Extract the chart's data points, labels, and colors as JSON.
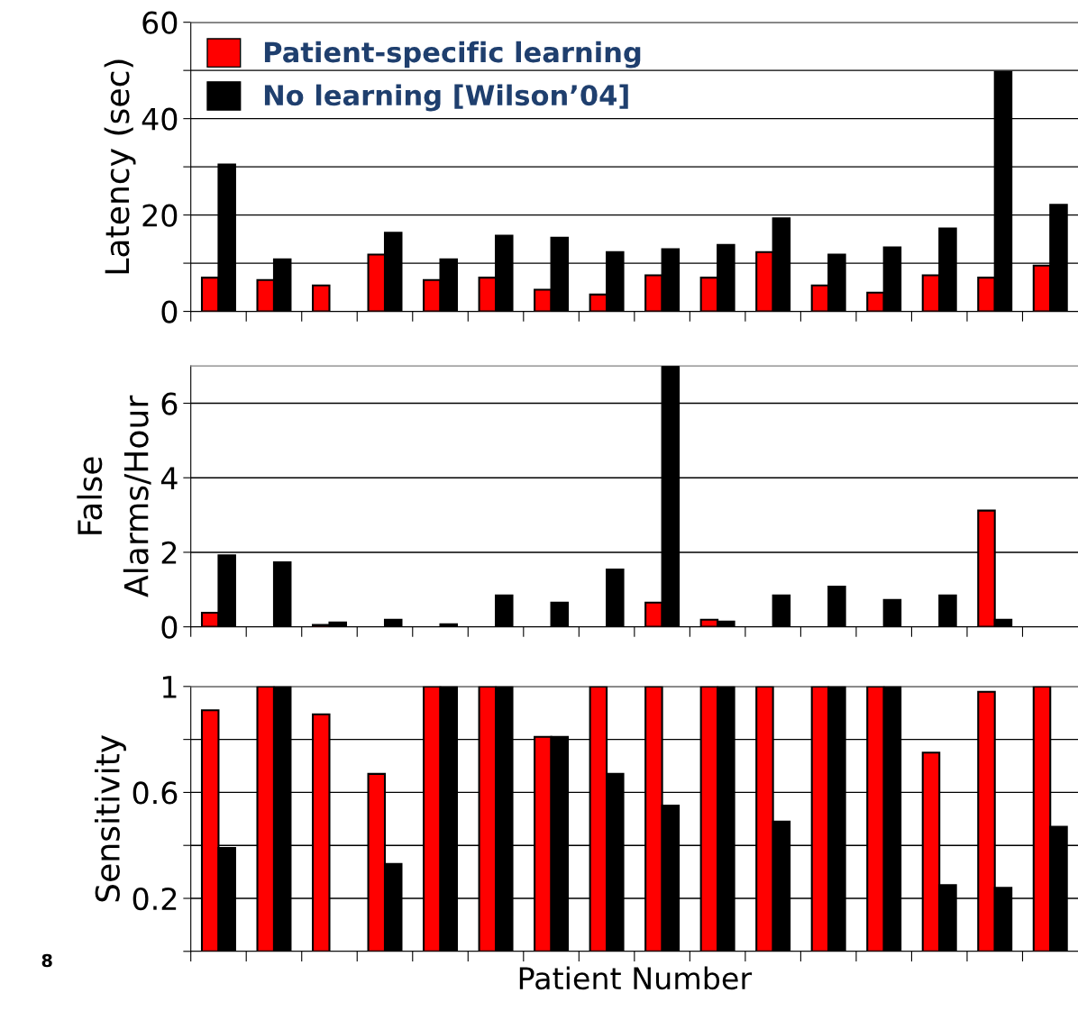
{
  "chart_data": [
    {
      "type": "bar",
      "ylabel": "Latency (sec)",
      "categories": [
        null,
        null,
        null,
        null,
        null,
        null,
        null,
        null,
        null,
        null,
        null,
        null,
        null,
        null,
        null,
        null
      ],
      "ylim": [
        0,
        60
      ],
      "yticks": [
        0,
        {
          "value": 10,
          "label": null
        },
        20,
        {
          "value": 30,
          "label": null
        },
        40,
        {
          "value": 50,
          "label": null
        },
        60
      ],
      "grid": "y",
      "legend": "top left",
      "tick_labels": "y",
      "series": [
        {
          "name": "Patient-specific learning",
          "color": "#ff0000",
          "values": [
            7,
            6.5,
            5.4,
            11.8,
            6.5,
            7,
            4.5,
            3.5,
            7.5,
            7,
            12.3,
            5.4,
            3.9,
            7.5,
            7,
            9.5
          ]
        },
        {
          "name": "No learning [Wilson’04]",
          "color": "#000000",
          "values": [
            30.5,
            10.8,
            null,
            16.3,
            10.8,
            15.7,
            15.3,
            12.3,
            12.9,
            13.8,
            19.3,
            11.8,
            13.3,
            17.2,
            49.7,
            22.1
          ]
        }
      ]
    },
    {
      "type": "bar",
      "ylabel": "False\nAlarms/Hour",
      "categories": [
        null,
        null,
        null,
        null,
        null,
        null,
        null,
        null,
        null,
        null,
        null,
        null,
        null,
        null,
        null,
        null
      ],
      "ylim": [
        0,
        7
      ],
      "yticks": [
        0,
        2,
        4,
        6
      ],
      "grid": "y",
      "tick_labels": "y",
      "series": [
        {
          "color": "#ff0000",
          "values": [
            0.38,
            null,
            0.05,
            null,
            null,
            null,
            null,
            null,
            0.65,
            0.19,
            null,
            null,
            null,
            null,
            3.12,
            null
          ]
        },
        {
          "color": "#000000",
          "values": [
            1.92,
            1.73,
            0.12,
            0.19,
            0.07,
            0.84,
            0.65,
            1.54,
            7,
            0.14,
            0.84,
            1.08,
            0.72,
            0.84,
            0.19,
            null
          ]
        }
      ]
    },
    {
      "type": "bar",
      "ylabel": "Sensitivity",
      "xlabel": "Patient Number",
      "categories": [
        null,
        null,
        null,
        null,
        null,
        null,
        null,
        null,
        null,
        null,
        null,
        null,
        null,
        null,
        null,
        null
      ],
      "ylim": [
        0,
        1
      ],
      "yticks": [
        {
          "value": 0,
          "label": null
        },
        0.2,
        {
          "value": 0.4,
          "label": null
        },
        0.6,
        {
          "value": 0.8,
          "label": null
        },
        1
      ],
      "grid": "y",
      "tick_labels": "y",
      "annotations": [
        "8"
      ],
      "series": [
        {
          "color": "#ff0000",
          "values": [
            0.91,
            1,
            0.895,
            0.67,
            1,
            1,
            0.81,
            1,
            1,
            1,
            1,
            1,
            1,
            0.75,
            0.98,
            1
          ]
        },
        {
          "color": "#000000",
          "values": [
            0.39,
            1,
            null,
            0.33,
            1,
            1,
            0.81,
            0.67,
            0.55,
            1,
            0.49,
            1,
            1,
            0.25,
            0.24,
            0.47
          ]
        }
      ]
    }
  ]
}
